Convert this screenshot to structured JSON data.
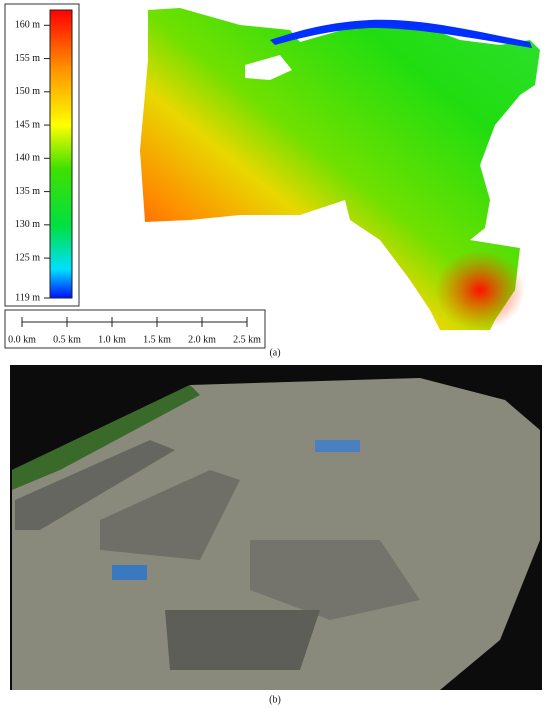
{
  "figure_a": {
    "colorbar": {
      "lim": [
        119,
        162.3
      ],
      "ticks": [
        {
          "value": 160,
          "label": "160 m"
        },
        {
          "value": 155,
          "label": "155 m"
        },
        {
          "value": 150,
          "label": "150 m"
        },
        {
          "value": 145,
          "label": "145 m"
        },
        {
          "value": 140,
          "label": "140 m"
        },
        {
          "value": 135,
          "label": "135 m"
        },
        {
          "value": 130,
          "label": "130 m"
        },
        {
          "value": 125,
          "label": "125 m"
        },
        {
          "value": 119,
          "label": "119 m"
        }
      ]
    },
    "scale_bar": {
      "lim": [
        0,
        2.5
      ],
      "ticks": [
        {
          "value": 0,
          "label": "0.0 km"
        },
        {
          "value": 0.5,
          "label": "0.5 km"
        },
        {
          "value": 1,
          "label": "1.0 km"
        },
        {
          "value": 1.5,
          "label": "1.5 km"
        },
        {
          "value": 2,
          "label": "2.0 km"
        },
        {
          "value": 2.5,
          "label": "2.5 km"
        }
      ]
    },
    "caption": "(a)"
  },
  "figure_b": {
    "caption": "(b)"
  }
}
